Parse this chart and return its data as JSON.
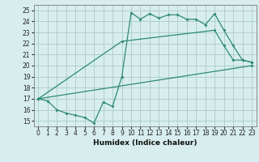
{
  "line1_x": [
    0,
    1,
    2,
    3,
    4,
    5,
    6,
    7,
    8,
    9,
    10,
    11,
    12,
    13,
    14,
    15,
    16,
    17,
    18,
    19,
    20,
    21,
    22,
    23
  ],
  "line1_y": [
    17.0,
    16.8,
    16.0,
    15.7,
    15.5,
    15.3,
    14.8,
    16.7,
    16.3,
    19.0,
    24.8,
    24.2,
    24.7,
    24.3,
    24.6,
    24.6,
    24.2,
    24.2,
    23.7,
    24.7,
    23.2,
    21.8,
    20.5,
    20.3
  ],
  "line2_x": [
    0,
    9,
    19,
    20,
    21,
    22,
    23
  ],
  "line2_y": [
    17.0,
    22.2,
    23.2,
    21.8,
    20.5,
    20.5,
    20.3
  ],
  "line3_x": [
    0,
    23
  ],
  "line3_y": [
    17.0,
    20.0
  ],
  "color": "#2e8b6e",
  "bg_color": "#d8eeee",
  "grid_color": "#b0cfcf",
  "xlabel": "Humidex (Indice chaleur)",
  "xlim": [
    -0.5,
    23.5
  ],
  "ylim": [
    14.5,
    25.5
  ],
  "yticks": [
    15,
    16,
    17,
    18,
    19,
    20,
    21,
    22,
    23,
    24,
    25
  ],
  "xticks": [
    0,
    1,
    2,
    3,
    4,
    5,
    6,
    7,
    8,
    9,
    10,
    11,
    12,
    13,
    14,
    15,
    16,
    17,
    18,
    19,
    20,
    21,
    22,
    23
  ]
}
